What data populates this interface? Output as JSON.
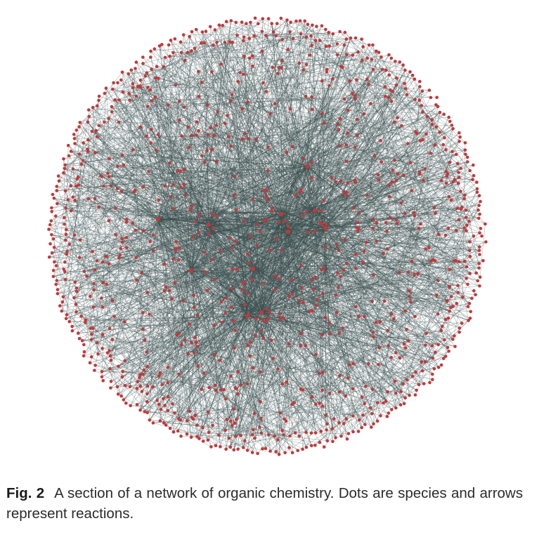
{
  "figure": {
    "label": "Fig. 2",
    "caption": "A section of a network of organic chemistry. Dots are species and arrows represent reactions."
  },
  "colors": {
    "node": "#c0393b",
    "edge": "#3a4f4f",
    "caption_text": "#2b2b2b"
  }
}
